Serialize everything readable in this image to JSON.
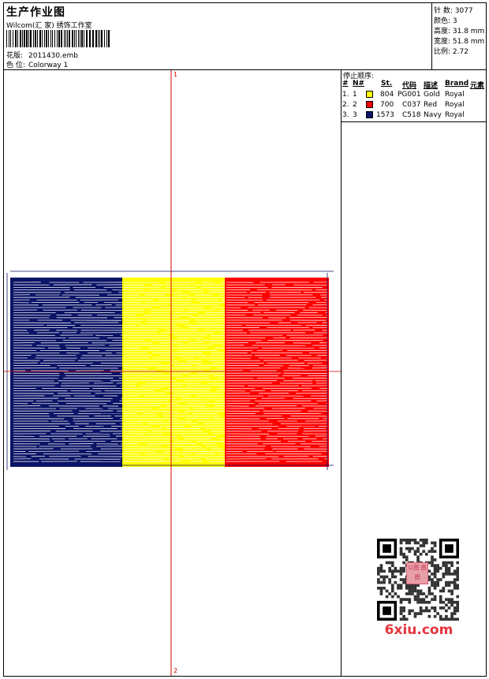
{
  "header": {
    "title": "生产作业图",
    "company": "Wilcom(汇 家) 绣饰工作室",
    "design_label": "花版:",
    "design_value": "2011430.emb",
    "colorway_label": "色 位:",
    "colorway_value": "Colorway 1"
  },
  "stats": {
    "stitches": "针 数: 3077",
    "colors": "颜色: 3",
    "height": "高度: 31.8 mm",
    "width": "宽度: 51.8 mm",
    "scale": "比例: 2.72"
  },
  "stop_sequence": {
    "title": "停止顺序:",
    "headers": {
      "num": "#",
      "needle": "N#",
      "stitches": "St.",
      "code": "代码",
      "desc": "描述",
      "brand": "Brand",
      "element": "元素"
    },
    "rows": [
      {
        "num": "1.",
        "needle": "1",
        "stitches": "804",
        "code": "PG001",
        "desc": "Gold",
        "brand": "Royal",
        "color": "#ffff00"
      },
      {
        "num": "2.",
        "needle": "2",
        "stitches": "700",
        "code": "C037",
        "desc": "Red",
        "brand": "Royal",
        "color": "#ff0000"
      },
      {
        "num": "3.",
        "needle": "3",
        "stitches": "1573",
        "code": "C518",
        "desc": "Navy",
        "brand": "Royal",
        "color": "#0b1466"
      }
    ]
  },
  "design": {
    "axis_top_label": "1",
    "axis_bottom_label": "2",
    "colors": {
      "left": "#0b1466",
      "middle": "#ffff00",
      "right": "#ff0000",
      "axis": "#d40000"
    }
  },
  "watermark": {
    "text": "6xiu.com",
    "stamp": "以图 图图"
  }
}
